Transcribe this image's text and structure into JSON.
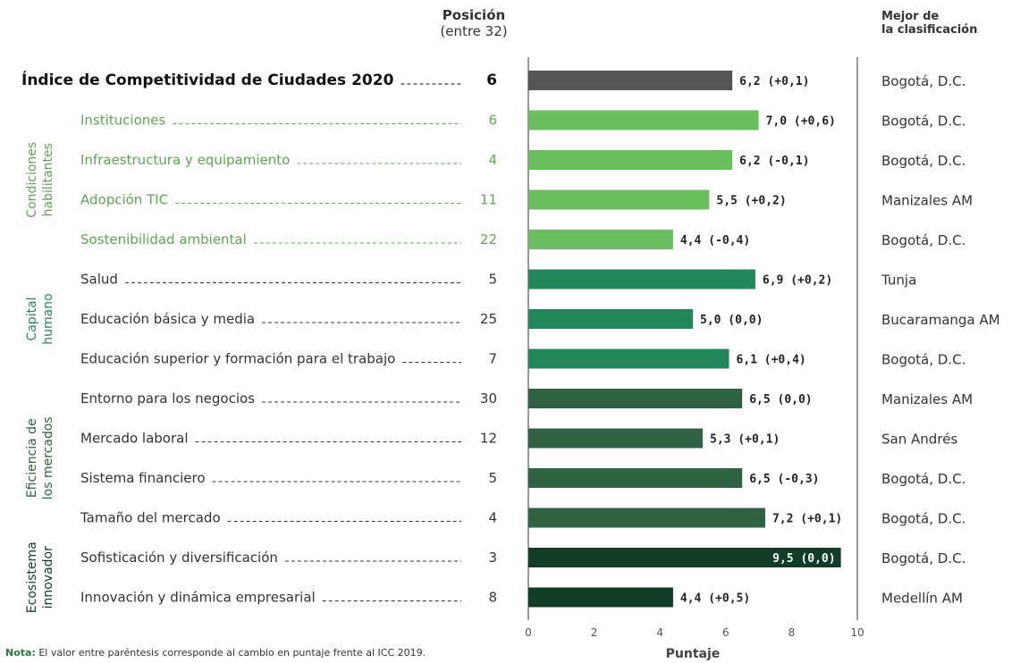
{
  "header": {
    "position_title": "Posición",
    "position_subtitle": "(entre 32)",
    "best_title_line1": "Mejor de",
    "best_title_line2": "la clasificación"
  },
  "note": {
    "label": "Nota:",
    "text": "El valor entre paréntesis corresponde al cambio en puntaje frente al ICC 2019."
  },
  "colors": {
    "overall": "#555555",
    "condiciones": "#6cbf5f",
    "capital": "#22885c",
    "eficiencia": "#2f6343",
    "ecosistema": "#0f3d26",
    "text_green": "#5aa84f"
  },
  "groups": [
    {
      "name_line1": "Condiciones",
      "name_line2": "habilitantes",
      "color_key": "condiciones",
      "rows": [
        1,
        4
      ]
    },
    {
      "name_line1": "Capital",
      "name_line2": "humano",
      "color_key": "capital",
      "rows": [
        5,
        7
      ]
    },
    {
      "name_line1": "Eficiencia de",
      "name_line2": "los mercados",
      "color_key": "eficiencia",
      "rows": [
        8,
        11
      ]
    },
    {
      "name_line1": "Ecosistema",
      "name_line2": "innovador",
      "color_key": "ecosistema",
      "rows": [
        12,
        13
      ]
    }
  ],
  "chart_data": {
    "type": "bar",
    "orientation": "horizontal",
    "xlabel": "Puntaje",
    "xlim": [
      0,
      10
    ],
    "xticks": [
      0,
      2,
      4,
      6,
      8,
      10
    ],
    "categories": [
      "Índice de Competitividad de Ciudades 2020",
      "Instituciones",
      "Infraestructura y equipamiento",
      "Adopción TIC",
      "Sostenibilidad ambiental",
      "Salud",
      "Educación básica y media",
      "Educación superior y formación para el trabajo",
      "Entorno para los negocios",
      "Mercado laboral",
      "Sistema financiero",
      "Tamaño del mercado",
      "Sofisticación y diversificación",
      "Innovación y dinámica empresarial"
    ],
    "values": [
      6.2,
      7.0,
      6.2,
      5.5,
      4.4,
      6.9,
      5.0,
      6.1,
      6.5,
      5.3,
      6.5,
      7.2,
      9.5,
      4.4
    ],
    "value_labels": [
      "6,2",
      "7,0",
      "6,2",
      "5,5",
      "4,4",
      "6,9",
      "5,0",
      "6,1",
      "6,5",
      "5,3",
      "6,5",
      "7,2",
      "9,5",
      "4,4"
    ],
    "changes": [
      "(+0,1)",
      "(+0,6)",
      "(-0,1)",
      "(+0,2)",
      "(-0,4)",
      "(+0,2)",
      "(0,0)",
      "(+0,4)",
      "(0,0)",
      "(+0,1)",
      "(-0,3)",
      "(+0,1)",
      "(0,0)",
      "(+0,5)"
    ],
    "positions": [
      6,
      6,
      4,
      11,
      22,
      5,
      25,
      7,
      30,
      12,
      5,
      4,
      3,
      8
    ],
    "best": [
      "Bogotá, D.C.",
      "Bogotá, D.C.",
      "Bogotá, D.C.",
      "Manizales AM",
      "Bogotá, D.C.",
      "Tunja",
      "Bucaramanga AM",
      "Bogotá, D.C.",
      "Manizales AM",
      "San Andrés",
      "Bogotá, D.C.",
      "Bogotá, D.C.",
      "Bogotá, D.C.",
      "Medellín AM"
    ],
    "color_keys": [
      "overall",
      "condiciones",
      "condiciones",
      "condiciones",
      "condiciones",
      "capital",
      "capital",
      "capital",
      "eficiencia",
      "eficiencia",
      "eficiencia",
      "eficiencia",
      "ecosistema",
      "ecosistema"
    ]
  }
}
